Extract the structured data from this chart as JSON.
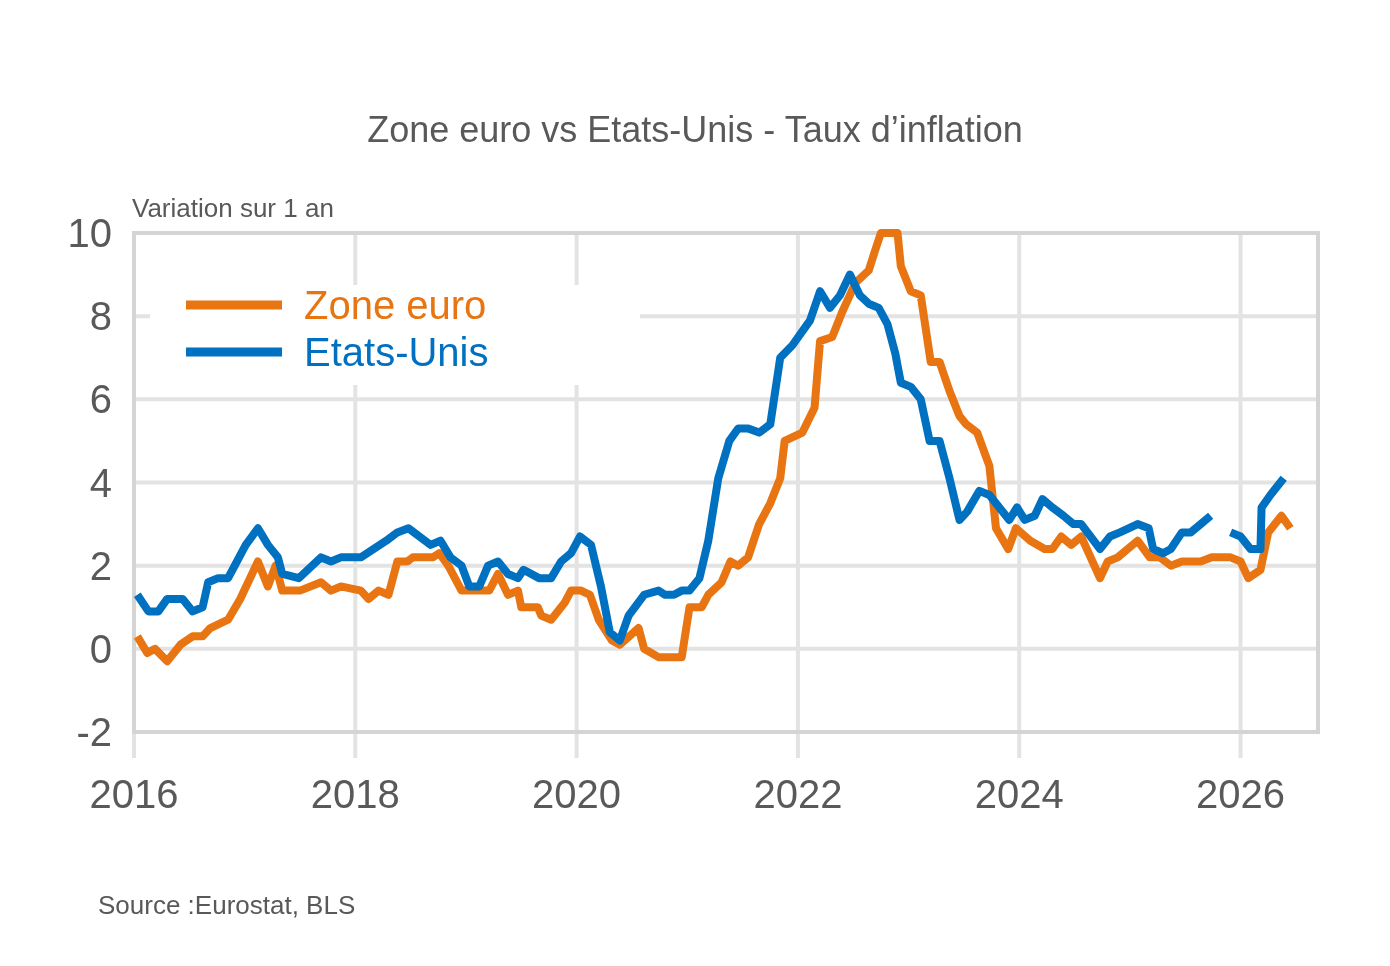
{
  "chart_data": {
    "type": "line",
    "title": "Zone euro vs Etats-Unis - Taux d’inflation",
    "ylabel": "Variation sur 1 an",
    "annotations": [
      "Source :Eurostat, BLS"
    ],
    "xlim": [
      2016,
      2026.7
    ],
    "xticks": [
      2016,
      2018,
      2020,
      2022,
      2024,
      2026
    ],
    "ylim": [
      -2,
      10
    ],
    "yticks": [
      -2,
      0,
      2,
      4,
      6,
      8,
      10
    ],
    "grid": true,
    "legend": "top left",
    "line_style": "solid",
    "marker": "none",
    "series": [
      {
        "name": "Zone euro",
        "color": "#e87511",
        "x": [
          2016.03,
          2016.12,
          2016.19,
          2016.3,
          2016.42,
          2016.53,
          2016.62,
          2016.69,
          2016.85,
          2016.96,
          2017.12,
          2017.21,
          2017.28,
          2017.34,
          2017.5,
          2017.69,
          2017.78,
          2017.87,
          2018.05,
          2018.12,
          2018.21,
          2018.3,
          2018.38,
          2018.47,
          2018.52,
          2018.7,
          2018.76,
          2018.84,
          2018.96,
          2019.05,
          2019.12,
          2019.21,
          2019.29,
          2019.38,
          2019.47,
          2019.5,
          2019.65,
          2019.68,
          2019.77,
          2019.89,
          2019.95,
          2020.04,
          2020.12,
          2020.2,
          2020.32,
          2020.39,
          2020.56,
          2020.61,
          2020.74,
          2020.95,
          2021.02,
          2021.13,
          2021.19,
          2021.31,
          2021.39,
          2021.46,
          2021.55,
          2021.65,
          2021.75,
          2021.84,
          2021.88,
          2022.04,
          2022.15,
          2022.2,
          2022.31,
          2022.4,
          2022.52,
          2022.64,
          2022.7,
          2022.75,
          2022.9,
          2022.93,
          2023.02,
          2023.11,
          2023.2,
          2023.28,
          2023.37,
          2023.46,
          2023.52,
          2023.62,
          2023.73,
          2023.79,
          2023.9,
          2023.97,
          2024.1,
          2024.23,
          2024.3,
          2024.38,
          2024.47,
          2024.56,
          2024.73,
          2024.8,
          2024.89,
          2024.98,
          2025.07,
          2025.18,
          2025.27,
          2025.37,
          2025.47,
          2025.64,
          2025.74,
          2025.91,
          2026.0,
          2026.07,
          2026.18,
          2026.25,
          2026.37,
          2026.45
        ],
        "values": [
          0.3,
          -0.1,
          0,
          -0.3,
          0.1,
          0.3,
          0.3,
          0.5,
          0.7,
          1.2,
          2.1,
          1.5,
          2,
          1.4,
          1.4,
          1.6,
          1.4,
          1.5,
          1.4,
          1.2,
          1.4,
          1.3,
          2.1,
          2.1,
          2.2,
          2.2,
          2.3,
          2,
          1.4,
          1.4,
          1.4,
          1.4,
          1.8,
          1.3,
          1.4,
          1,
          1,
          0.8,
          0.7,
          1.1,
          1.4,
          1.4,
          1.3,
          0.7,
          0.2,
          0.1,
          0.5,
          0,
          -0.2,
          -0.2,
          1,
          1,
          1.3,
          1.6,
          2.1,
          2,
          2.2,
          3,
          3.5,
          4.1,
          5,
          5.2,
          5.8,
          7.4,
          7.5,
          8.1,
          8.8,
          9.1,
          9.6,
          10,
          10,
          9.2,
          8.6,
          8.5,
          6.9,
          6.9,
          6.2,
          5.6,
          5.4,
          5.2,
          4.4,
          2.9,
          2.4,
          2.9,
          2.6,
          2.4,
          2.4,
          2.7,
          2.5,
          2.7,
          1.7,
          2.1,
          2.2,
          2.4,
          2.6,
          2.2,
          2.2,
          2,
          2.1,
          2.1,
          2.2,
          2.2,
          2.1,
          1.7,
          1.9,
          2.8,
          3.2,
          2.9
        ]
      },
      {
        "name": "Etats-Unis",
        "color": "#0070c0",
        "x": [
          2016.03,
          2016.13,
          2016.22,
          2016.3,
          2016.44,
          2016.53,
          2016.62,
          2016.67,
          2016.76,
          2016.85,
          2017.01,
          2017.12,
          2017.21,
          2017.3,
          2017.34,
          2017.49,
          2017.69,
          2017.78,
          2017.87,
          2018.05,
          2018.28,
          2018.38,
          2018.48,
          2018.68,
          2018.77,
          2018.86,
          2018.96,
          2019.03,
          2019.12,
          2019.2,
          2019.29,
          2019.38,
          2019.47,
          2019.52,
          2019.66,
          2019.77,
          2019.86,
          2019.95,
          2020.03,
          2020.13,
          2020.22,
          2020.3,
          2020.39,
          2020.47,
          2020.61,
          2020.74,
          2020.8,
          2020.88,
          2020.95,
          2021.02,
          2021.11,
          2021.19,
          2021.28,
          2021.38,
          2021.46,
          2021.55,
          2021.65,
          2021.75,
          2021.84,
          2021.95,
          2022.11,
          2022.2,
          2022.29,
          2022.38,
          2022.47,
          2022.56,
          2022.64,
          2022.73,
          2022.81,
          2022.88,
          2022.93,
          2023.02,
          2023.11,
          2023.19,
          2023.28,
          2023.37,
          2023.46,
          2023.53,
          2023.64,
          2023.73,
          2023.82,
          2023.91,
          2023.98,
          2024.05,
          2024.14,
          2024.21,
          2024.3,
          2024.4,
          2024.49,
          2024.56,
          2024.73,
          2024.82,
          2024.91,
          2025.07,
          2025.17,
          2025.21,
          2025.3,
          2025.37,
          2025.47,
          2025.55,
          2025.64,
          2025.73,
          2025.82,
          2025.91,
          2026.0,
          2026.09,
          2026.18,
          2026.19,
          2026.27,
          2026.39
        ],
        "values": [
          1.3,
          0.9,
          0.9,
          1.2,
          1.2,
          0.9,
          1,
          1.6,
          1.7,
          1.7,
          2.5,
          2.9,
          2.5,
          2.2,
          1.8,
          1.7,
          2.2,
          2.1,
          2.2,
          2.2,
          2.6,
          2.8,
          2.9,
          2.5,
          2.6,
          2.2,
          2,
          1.5,
          1.5,
          2,
          2.1,
          1.8,
          1.7,
          1.9,
          1.7,
          1.7,
          2.1,
          2.3,
          2.7,
          2.5,
          1.5,
          0.4,
          0.2,
          0.8,
          1.3,
          1.4,
          1.3,
          1.3,
          1.4,
          1.4,
          1.7,
          2.6,
          4.1,
          5,
          5.3,
          5.3,
          5.2,
          5.4,
          7,
          7.3,
          7.9,
          8.6,
          8.2,
          8.5,
          9,
          8.5,
          8.3,
          8.2,
          7.8,
          7.1,
          6.4,
          6.3,
          6,
          5,
          5,
          4.1,
          3.1,
          3.3,
          3.8,
          3.7,
          3.4,
          3.1,
          3.4,
          3.1,
          3.2,
          3.6,
          3.4,
          3.2,
          3,
          3,
          2.4,
          2.7,
          2.8,
          3,
          2.9,
          2.4,
          2.3,
          2.4,
          2.8,
          2.8,
          3,
          3.2,
          null,
          2.8,
          2.7,
          2.4,
          2.4,
          3.4,
          3.7,
          4.1
        ]
      }
    ]
  }
}
